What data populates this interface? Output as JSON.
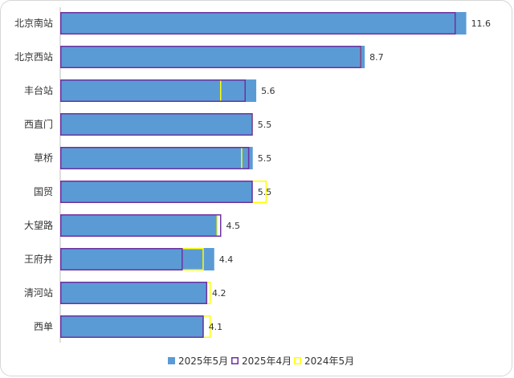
{
  "chart_data": {
    "type": "bar",
    "orientation": "horizontal",
    "title": "",
    "xlabel": "",
    "ylabel": "",
    "xlim": [
      0,
      12
    ],
    "grid": false,
    "legend_position": "bottom",
    "categories": [
      "北京南站",
      "北京西站",
      "丰台站",
      "西直门",
      "草桥",
      "国贸",
      "大望路",
      "王府井",
      "清河站",
      "西单"
    ],
    "series": [
      {
        "name": "2025年5月",
        "color": "#5b9bd5",
        "style": "filled",
        "values": [
          11.6,
          8.7,
          5.6,
          5.5,
          5.5,
          5.5,
          4.5,
          4.4,
          4.2,
          4.1
        ]
      },
      {
        "name": "2025年4月",
        "color": "#7030a0",
        "style": "outline",
        "values": [
          11.3,
          8.6,
          5.3,
          5.5,
          5.4,
          5.5,
          4.6,
          3.5,
          4.2,
          4.1
        ]
      },
      {
        "name": "2024年5月",
        "color": "#ffff00",
        "style": "outline",
        "values": [
          11.3,
          8.6,
          4.6,
          5.5,
          5.2,
          5.9,
          4.5,
          4.1,
          4.3,
          4.3
        ]
      }
    ],
    "data_labels": [
      "11.6",
      "8.7",
      "5.6",
      "5.5",
      "5.5",
      "5.5",
      "4.5",
      "4.4",
      "4.2",
      "4.1"
    ]
  }
}
